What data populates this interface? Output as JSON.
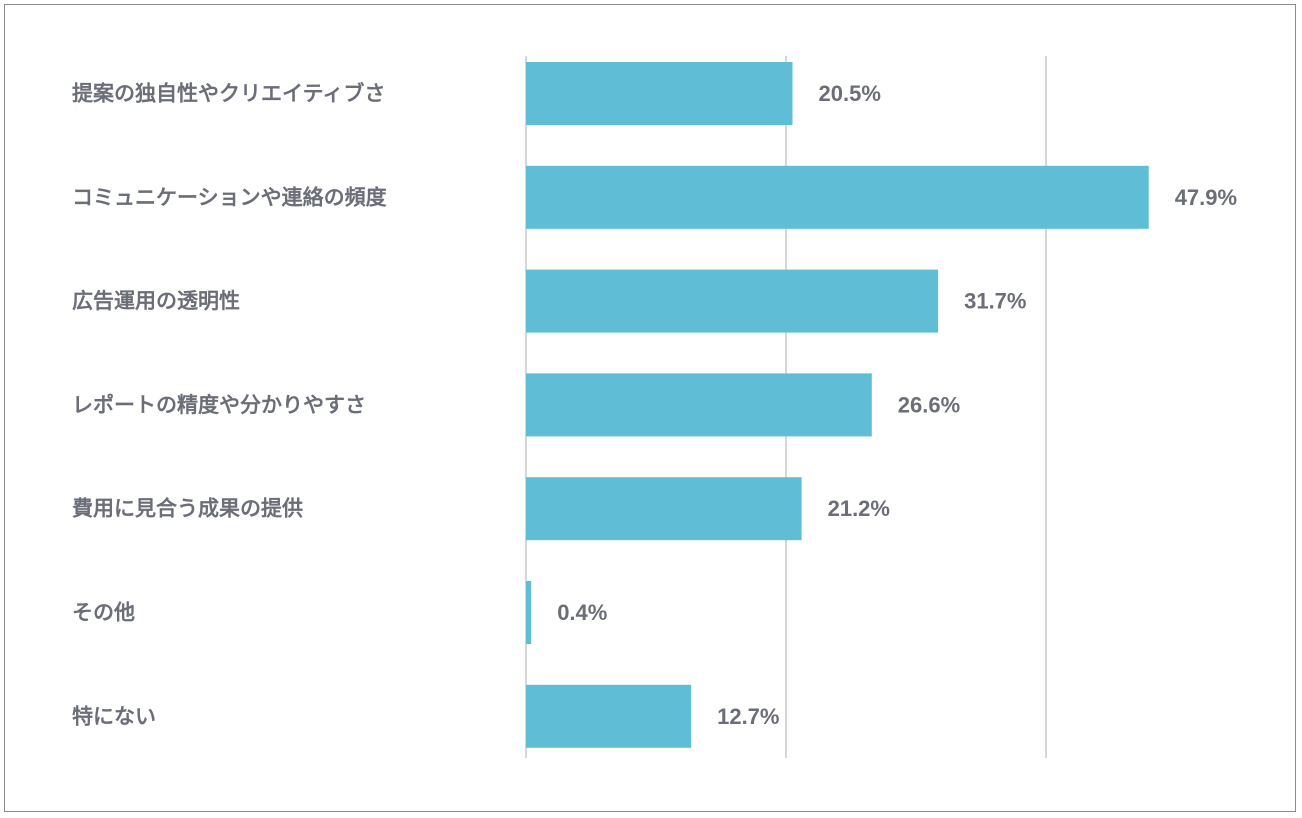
{
  "chart_data": {
    "type": "bar",
    "orientation": "horizontal",
    "categories": [
      "提案の独自性やクリエイティブさ",
      "コミュニケーションや連絡の頻度",
      "広告運用の透明性",
      "レポートの精度や分かりやすさ",
      "費用に見合う成果の提供",
      "その他",
      "特にない"
    ],
    "values": [
      20.5,
      47.9,
      31.7,
      26.6,
      21.2,
      0.4,
      12.7
    ],
    "value_labels": [
      "20.5%",
      "47.9%",
      "31.7%",
      "26.6%",
      "21.2%",
      "0.4%",
      "12.7%"
    ],
    "xlim": [
      0,
      48
    ],
    "grid": true,
    "gridlines_at": [
      0,
      20,
      40
    ],
    "bar_color": "#5fbdd6",
    "gridline_color": "#d6d6d6",
    "label_color": "#6b6e79"
  }
}
